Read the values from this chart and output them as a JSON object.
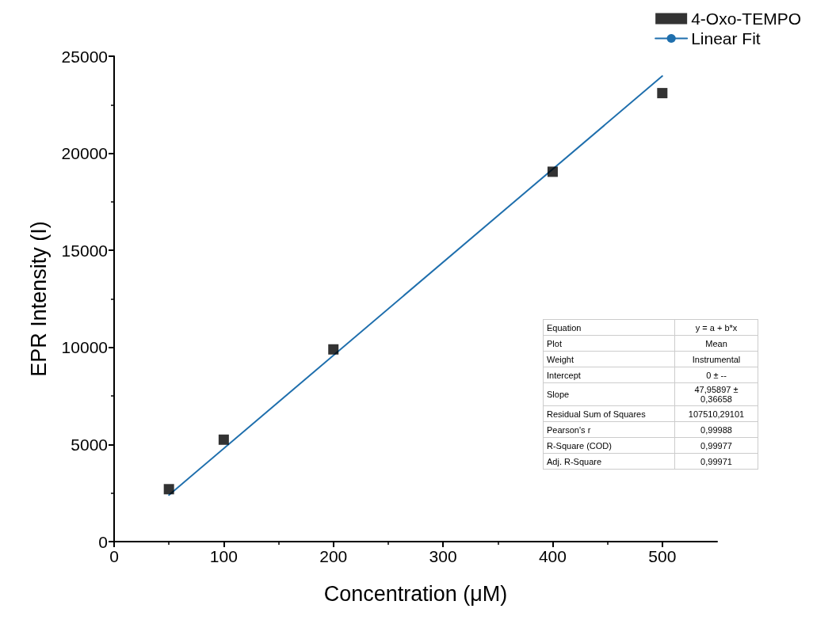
{
  "chart_data": {
    "type": "scatter",
    "xlabel": "Concentration (μM)",
    "ylabel": "EPR Intensity (I)",
    "x": [
      50,
      100,
      200,
      400,
      500
    ],
    "series": [
      {
        "name": "4-Oxo-TEMPO",
        "color": "#000000",
        "marker": "square",
        "values": [
          2700,
          5250,
          9900,
          19050,
          23100
        ]
      },
      {
        "name": "Linear Fit",
        "type": "line",
        "color": "#1f6fad",
        "marker": "none",
        "x": [
          50,
          500
        ],
        "values": [
          2398,
          23979
        ]
      }
    ],
    "xlim": [
      0,
      550
    ],
    "xticks": [
      0,
      100,
      200,
      300,
      400,
      500
    ],
    "ylim": [
      0,
      25000
    ],
    "yticks": [
      0,
      5000,
      10000,
      15000,
      20000,
      25000
    ],
    "grid": false,
    "legend": "top right",
    "annotations": [
      "Equation",
      "y = a + b*x",
      "Plot",
      "Mean",
      "Weight",
      "Instrumental",
      "Intercept",
      "0 ± --",
      "Slope",
      "47,95897 ± 0,36658",
      "Residual Sum of Squares",
      "107510,29101",
      "Pearson's r",
      "0,99988",
      "R-Square (COD)",
      "0,99977",
      "Adj. R-Square",
      "0,99971"
    ]
  }
}
